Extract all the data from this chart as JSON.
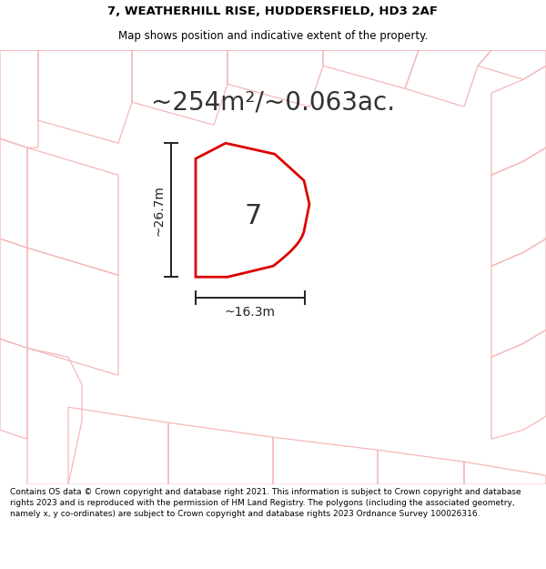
{
  "title_line1": "7, WEATHERHILL RISE, HUDDERSFIELD, HD3 2AF",
  "title_line2": "Map shows position and indicative extent of the property.",
  "area_text": "~254m²/~0.063ac.",
  "plot_number": "7",
  "dim_height": "~26.7m",
  "dim_width": "~16.3m",
  "footer_text": "Contains OS data © Crown copyright and database right 2021. This information is subject to Crown copyright and database rights 2023 and is reproduced with the permission of HM Land Registry. The polygons (including the associated geometry, namely x, y co-ordinates) are subject to Crown copyright and database rights 2023 Ordnance Survey 100026316.",
  "bg_color": "#ffffff",
  "map_bg_color": "#ffffff",
  "plot_fill": "#ffffff",
  "plot_edge_color": "#dd0000",
  "other_plot_color": "#f5b8b8",
  "dim_line_color": "#222222",
  "title_color": "#000000",
  "footer_color": "#000000",
  "area_color": "#333333",
  "title_fontsize": 9.5,
  "subtitle_fontsize": 8.5,
  "area_fontsize": 20,
  "plot_label_fontsize": 22,
  "dim_fontsize": 10,
  "footer_fontsize": 6.5
}
